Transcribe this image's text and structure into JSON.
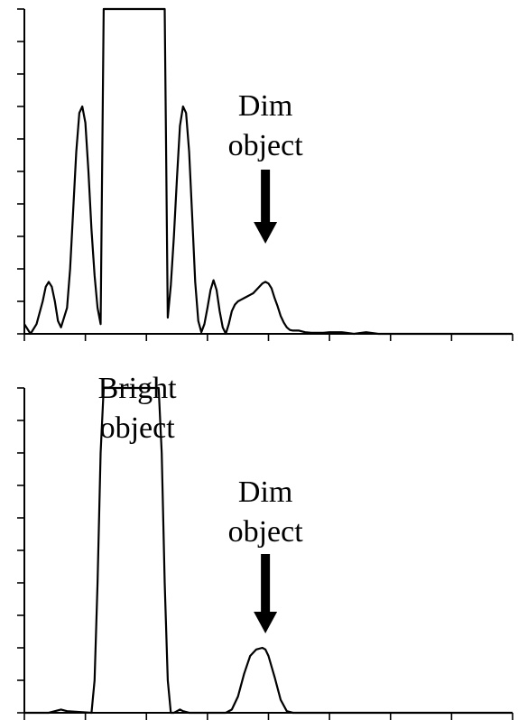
{
  "chart_data": [
    {
      "type": "line",
      "xlim": [
        0,
        8
      ],
      "ylim": [
        0,
        10
      ],
      "x_ticks": [
        0,
        1,
        2,
        3,
        4,
        5,
        6,
        7,
        8
      ],
      "y_ticks": [
        0,
        1,
        2,
        3,
        4,
        5,
        6,
        7,
        8,
        9,
        10
      ],
      "tick_labels_shown": false,
      "grid": false,
      "annotations": [
        {
          "text": [
            "Dim",
            "object"
          ],
          "arrow": true,
          "x": 3.95
        }
      ],
      "series": [
        {
          "x": [
            0.0,
            0.1,
            0.2,
            0.3,
            0.35,
            0.4,
            0.45,
            0.5,
            0.55,
            0.6,
            0.7,
            0.75,
            0.8,
            0.85,
            0.9,
            0.95,
            1.0,
            1.05,
            1.1,
            1.15,
            1.2,
            1.25,
            1.3,
            1.35,
            1.4,
            1.45,
            1.5,
            1.55,
            1.6,
            1.65,
            1.7,
            1.75,
            1.8,
            1.85,
            1.9,
            1.95,
            2.0,
            2.05,
            2.1,
            2.15,
            2.2,
            2.25,
            2.3,
            2.35,
            2.4,
            2.45,
            2.5,
            2.55,
            2.6,
            2.65,
            2.7,
            2.75,
            2.8,
            2.85,
            2.9,
            2.95,
            3.0,
            3.05,
            3.1,
            3.15,
            3.2,
            3.25,
            3.3,
            3.35,
            3.4,
            3.45,
            3.5,
            3.55,
            3.6,
            3.65,
            3.7,
            3.75,
            3.8,
            3.85,
            3.9,
            3.95,
            4.0,
            4.05,
            4.1,
            4.15,
            4.2,
            4.25,
            4.3,
            4.35,
            4.4,
            4.45,
            4.5,
            4.6,
            4.7,
            4.8,
            4.9,
            5.0,
            5.2,
            5.4,
            5.6,
            5.8,
            6.0,
            6.5,
            7.0,
            7.5,
            8.0
          ],
          "y": [
            0.3,
            0.0,
            0.3,
            1.0,
            1.45,
            1.6,
            1.45,
            1.0,
            0.4,
            0.2,
            0.8,
            2.0,
            3.8,
            5.6,
            6.8,
            7.0,
            6.5,
            5.0,
            3.2,
            1.8,
            0.8,
            0.3,
            10.0,
            10.0,
            10.0,
            10.0,
            10.0,
            10.0,
            10.0,
            10.0,
            10.0,
            10.0,
            10.0,
            10.0,
            10.0,
            10.0,
            10.0,
            10.0,
            10.0,
            10.0,
            10.0,
            10.0,
            10.0,
            0.5,
            1.5,
            3.0,
            4.8,
            6.4,
            7.0,
            6.8,
            5.6,
            3.6,
            1.6,
            0.4,
            0.05,
            0.3,
            0.8,
            1.35,
            1.65,
            1.35,
            0.7,
            0.2,
            0.0,
            0.3,
            0.7,
            0.9,
            1.0,
            1.05,
            1.1,
            1.15,
            1.2,
            1.25,
            1.35,
            1.45,
            1.55,
            1.6,
            1.55,
            1.4,
            1.1,
            0.85,
            0.55,
            0.35,
            0.2,
            0.12,
            0.1,
            0.1,
            0.1,
            0.05,
            0.03,
            0.03,
            0.03,
            0.05,
            0.05,
            0.0,
            0.05,
            0.0,
            0.0,
            0.0,
            0.0,
            0.0,
            0.0
          ]
        }
      ]
    },
    {
      "type": "line",
      "xlim": [
        0,
        8
      ],
      "ylim": [
        0,
        10
      ],
      "x_ticks": [
        0,
        1,
        2,
        3,
        4,
        5,
        6,
        7,
        8
      ],
      "y_ticks": [
        0,
        1,
        2,
        3,
        4,
        5,
        6,
        7,
        8,
        9,
        10
      ],
      "tick_labels_shown": false,
      "grid": false,
      "annotations": [
        {
          "text": [
            "Bright",
            "object"
          ],
          "arrow": false,
          "x": 1.85
        },
        {
          "text": [
            "Dim",
            "object"
          ],
          "arrow": true,
          "x": 3.95
        }
      ],
      "series": [
        {
          "x": [
            0.0,
            0.4,
            0.5,
            0.6,
            0.7,
            1.1,
            1.15,
            1.2,
            1.25,
            1.3,
            1.35,
            1.4,
            1.45,
            1.5,
            1.55,
            1.6,
            1.65,
            1.7,
            1.75,
            1.8,
            1.85,
            1.9,
            1.95,
            2.0,
            2.05,
            2.1,
            2.15,
            2.2,
            2.25,
            2.3,
            2.35,
            2.4,
            2.45,
            2.5,
            2.55,
            2.6,
            2.7,
            3.0,
            3.3,
            3.4,
            3.5,
            3.6,
            3.7,
            3.8,
            3.9,
            3.95,
            4.0,
            4.1,
            4.2,
            4.3,
            4.4,
            4.5,
            5.0,
            6.0,
            7.0,
            8.0
          ],
          "y": [
            0.0,
            0.0,
            0.05,
            0.1,
            0.05,
            0.0,
            1.0,
            4.0,
            8.0,
            10.0,
            10.0,
            10.0,
            10.0,
            10.0,
            10.0,
            10.0,
            10.0,
            10.0,
            10.0,
            10.0,
            10.0,
            10.0,
            10.0,
            10.0,
            10.0,
            10.0,
            10.0,
            10.0,
            8.0,
            4.0,
            1.0,
            0.0,
            0.0,
            0.05,
            0.1,
            0.05,
            0.0,
            0.0,
            0.0,
            0.1,
            0.5,
            1.2,
            1.75,
            1.95,
            2.0,
            1.95,
            1.75,
            1.1,
            0.4,
            0.05,
            0.0,
            0.0,
            0.0,
            0.0,
            0.0,
            0.0
          ]
        }
      ]
    }
  ]
}
